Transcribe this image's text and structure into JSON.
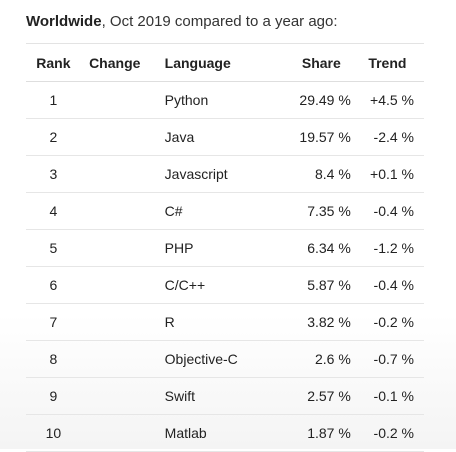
{
  "heading": {
    "bold": "Worldwide",
    "rest": ", Oct 2019 compared to a year ago:"
  },
  "table": {
    "headers": {
      "rank": "Rank",
      "change": "Change",
      "language": "Language",
      "share": "Share",
      "trend": "Trend"
    },
    "rows": [
      {
        "rank": "1",
        "change": "",
        "language": "Python",
        "share": "29.49 %",
        "trend": "+4.5 %"
      },
      {
        "rank": "2",
        "change": "",
        "language": "Java",
        "share": "19.57 %",
        "trend": "-2.4 %"
      },
      {
        "rank": "3",
        "change": "",
        "language": "Javascript",
        "share": "8.4 %",
        "trend": "+0.1 %"
      },
      {
        "rank": "4",
        "change": "",
        "language": "C#",
        "share": "7.35 %",
        "trend": "-0.4 %"
      },
      {
        "rank": "5",
        "change": "",
        "language": "PHP",
        "share": "6.34 %",
        "trend": "-1.2 %"
      },
      {
        "rank": "6",
        "change": "",
        "language": "C/C++",
        "share": "5.87 %",
        "trend": "-0.4 %"
      },
      {
        "rank": "7",
        "change": "",
        "language": "R",
        "share": "3.82 %",
        "trend": "-0.2 %"
      },
      {
        "rank": "8",
        "change": "",
        "language": "Objective-C",
        "share": "2.6 %",
        "trend": "-0.7 %"
      },
      {
        "rank": "9",
        "change": "",
        "language": "Swift",
        "share": "2.57 %",
        "trend": "-0.1 %"
      },
      {
        "rank": "10",
        "change": "",
        "language": "Matlab",
        "share": "1.87 %",
        "trend": "-0.2 %"
      }
    ]
  }
}
